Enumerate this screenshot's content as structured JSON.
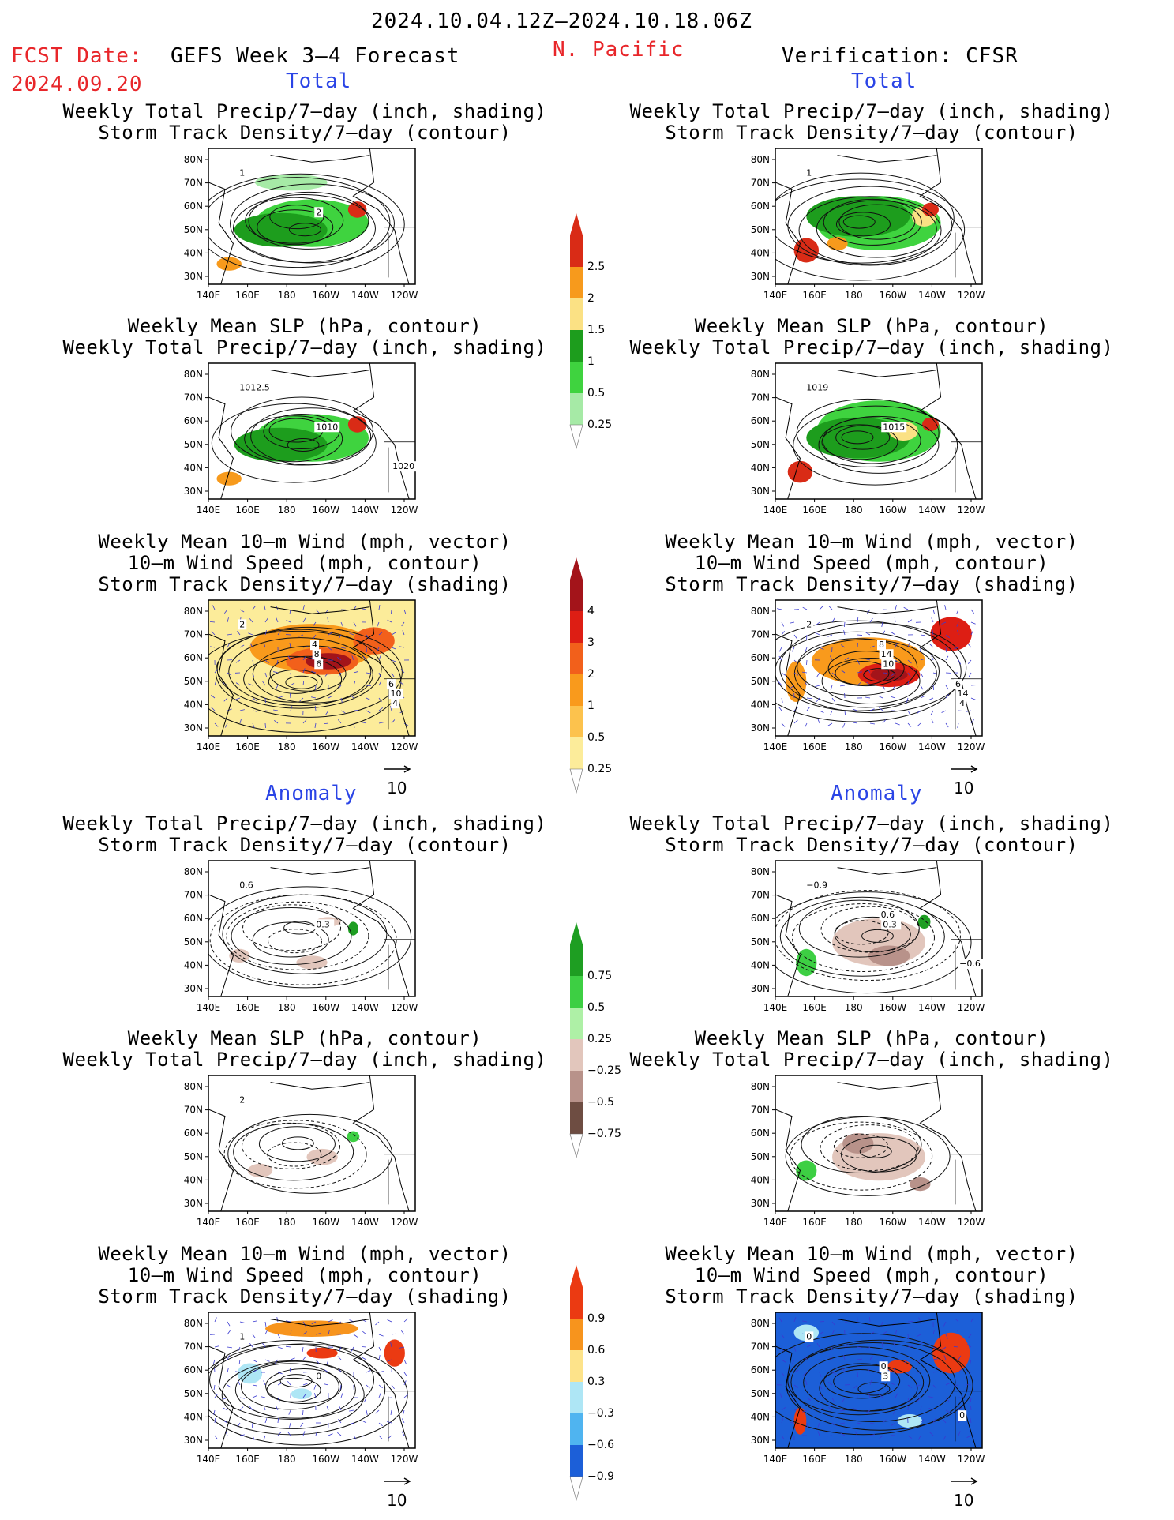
{
  "header": {
    "period": "2024.10.04.12Z–2024.10.18.06Z",
    "fcst_label": "FCST Date:",
    "fcst_date": "2024.09.20",
    "forecast_title": "GEFS Week 3–4 Forecast",
    "region": "N. Pacific",
    "verification": "Verification: CFSR"
  },
  "sections": {
    "total": "Total",
    "anomaly": "Anomaly"
  },
  "titles": {
    "precip_storm": [
      "Weekly Total Precip/7–day (inch, shading)",
      "Storm Track Density/7–day (contour)"
    ],
    "slp_precip": [
      "Weekly Mean SLP (hPa, contour)",
      "Weekly Total Precip/7–day (inch, shading)"
    ],
    "wind_storm": [
      "Weekly Mean 10–m Wind (mph, vector)",
      "10–m Wind Speed (mph, contour)",
      "Storm Track Density/7–day (shading)"
    ]
  },
  "axes": {
    "x_ticks": [
      "140E",
      "160E",
      "180",
      "160W",
      "140W",
      "120W"
    ],
    "y_ticks": [
      "80N",
      "70N",
      "60N",
      "50N",
      "40N",
      "30N"
    ]
  },
  "wind_reference": "10",
  "colorbars": {
    "precip_total": {
      "labels": [
        "2.5",
        "2",
        "1.5",
        "1",
        "0.5",
        "0.25"
      ],
      "colors": [
        "#d92b16",
        "#f79a1c",
        "#fbe184",
        "#1d9d1d",
        "#3fd33f",
        "#a6eaa6"
      ]
    },
    "storm_total": {
      "labels": [
        "4",
        "3",
        "2",
        "1",
        "0.5",
        "0.25"
      ],
      "colors": [
        "#a3141a",
        "#dd1e14",
        "#f2601b",
        "#f99a1c",
        "#fcc24d",
        "#fcec9a"
      ]
    },
    "precip_anom": {
      "labels": [
        "0.75",
        "0.5",
        "0.25",
        "−0.25",
        "−0.5",
        "−0.75"
      ],
      "colors": [
        "#1e9e22",
        "#3dcf43",
        "#aef0a6",
        "#e2c6bc",
        "#b8928a",
        "#6e4d42"
      ]
    },
    "storm_anom": {
      "labels": [
        "0.9",
        "0.6",
        "0.3",
        "−0.3",
        "−0.6",
        "−0.9"
      ],
      "colors": [
        "#eb3a12",
        "#f7941d",
        "#fde38a",
        "#aee6f5",
        "#4fb4f0",
        "#1c5fd8"
      ]
    }
  },
  "panel_labels": {
    "fcst_precip_storm": [
      "1",
      "2"
    ],
    "fcst_slp": [
      "1012.5",
      "1010",
      "1020"
    ],
    "fcst_wind": [
      "2",
      "6",
      "4",
      "8",
      "10",
      "4",
      "6"
    ],
    "obs_precip_storm": [
      "1"
    ],
    "obs_slp": [
      "1019",
      "1015"
    ],
    "obs_wind": [
      "2",
      "10",
      "4",
      "14",
      "14",
      "8",
      "6"
    ],
    "fcst_anom_precip_storm": [
      "0.6",
      "0.3"
    ],
    "fcst_anom_slp": [
      "2"
    ],
    "fcst_anom_wind": [
      "1",
      "0"
    ],
    "obs_anom_precip_storm": [
      "−0.9",
      "0.3",
      "−0.6",
      "0.6"
    ],
    "obs_anom_wind": [
      "0",
      "3",
      "0",
      "0"
    ]
  }
}
